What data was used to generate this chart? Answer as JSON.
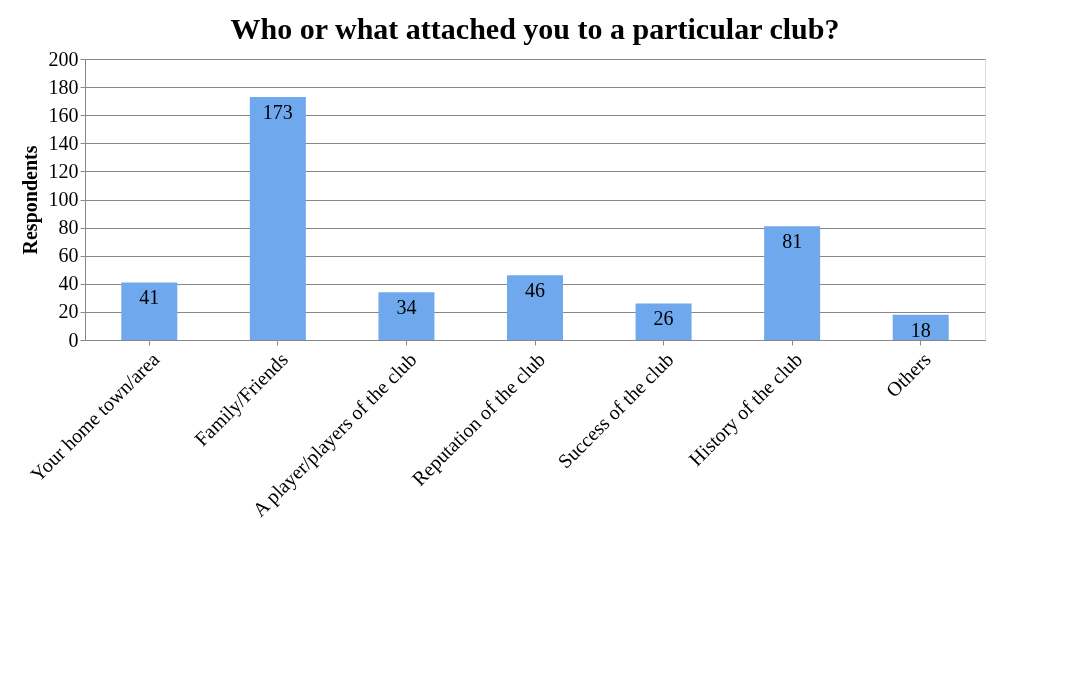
{
  "chart_data": {
    "type": "bar",
    "title": "Who or what attached you to a particular club?",
    "ylabel": "Respondents",
    "categories": [
      "Your home town/area",
      "Family/Friends",
      "A player/players of the club",
      "Reputation of the club",
      "Success of the club",
      "History of the club",
      "Others"
    ],
    "values": [
      41,
      173,
      34,
      46,
      26,
      81,
      18
    ],
    "color": "#6fa8ec",
    "ylim": [
      0,
      200
    ],
    "yticks": [
      0,
      20,
      40,
      60,
      80,
      100,
      120,
      140,
      160,
      180,
      200
    ],
    "grid": "y",
    "data_labels": true
  }
}
